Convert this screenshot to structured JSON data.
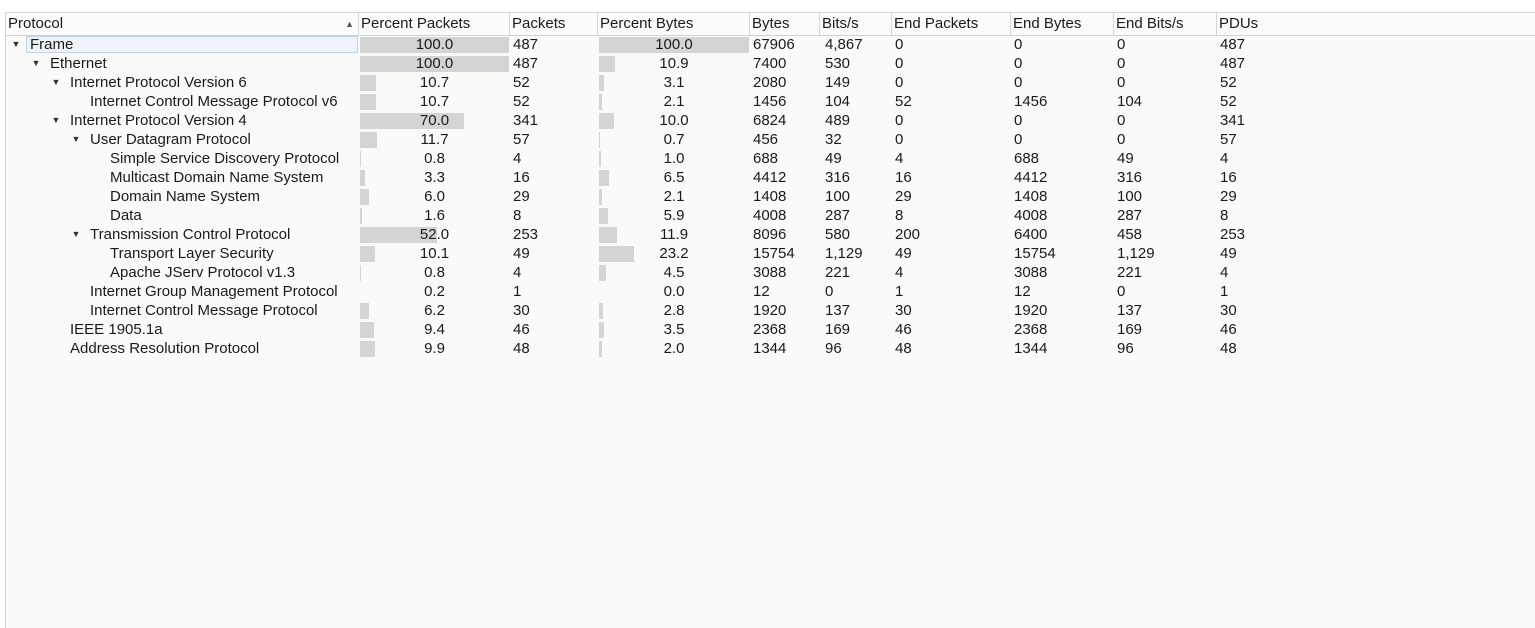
{
  "columns": {
    "protocol": "Protocol",
    "percent_packets": "Percent Packets",
    "packets": "Packets",
    "percent_bytes": "Percent Bytes",
    "bytes": "Bytes",
    "bits_per_s": "Bits/s",
    "end_packets": "End Packets",
    "end_bytes": "End Bytes",
    "end_bits_per_s": "End Bits/s",
    "pdus": "PDUs"
  },
  "sort": {
    "column": "protocol",
    "direction": "ascending",
    "icon": "sort-ascending-icon"
  },
  "rows": [
    {
      "protocol": "Frame",
      "depth": 0,
      "expanded": true,
      "selected": true,
      "percent_packets": "100.0",
      "packets": "487",
      "percent_bytes": "100.0",
      "bytes": "67906",
      "bits_per_s": "4,867",
      "end_packets": "0",
      "end_bytes": "0",
      "end_bits_per_s": "0",
      "pdus": "487"
    },
    {
      "protocol": "Ethernet",
      "depth": 1,
      "expanded": true,
      "percent_packets": "100.0",
      "packets": "487",
      "percent_bytes": "10.9",
      "bytes": "7400",
      "bits_per_s": "530",
      "end_packets": "0",
      "end_bytes": "0",
      "end_bits_per_s": "0",
      "pdus": "487"
    },
    {
      "protocol": "Internet Protocol Version 6",
      "depth": 2,
      "expanded": true,
      "percent_packets": "10.7",
      "packets": "52",
      "percent_bytes": "3.1",
      "bytes": "2080",
      "bits_per_s": "149",
      "end_packets": "0",
      "end_bytes": "0",
      "end_bits_per_s": "0",
      "pdus": "52"
    },
    {
      "protocol": "Internet Control Message Protocol v6",
      "depth": 3,
      "percent_packets": "10.7",
      "packets": "52",
      "percent_bytes": "2.1",
      "bytes": "1456",
      "bits_per_s": "104",
      "end_packets": "52",
      "end_bytes": "1456",
      "end_bits_per_s": "104",
      "pdus": "52"
    },
    {
      "protocol": "Internet Protocol Version 4",
      "depth": 2,
      "expanded": true,
      "percent_packets": "70.0",
      "packets": "341",
      "percent_bytes": "10.0",
      "bytes": "6824",
      "bits_per_s": "489",
      "end_packets": "0",
      "end_bytes": "0",
      "end_bits_per_s": "0",
      "pdus": "341"
    },
    {
      "protocol": "User Datagram Protocol",
      "depth": 3,
      "expanded": true,
      "percent_packets": "11.7",
      "packets": "57",
      "percent_bytes": "0.7",
      "bytes": "456",
      "bits_per_s": "32",
      "end_packets": "0",
      "end_bytes": "0",
      "end_bits_per_s": "0",
      "pdus": "57"
    },
    {
      "protocol": "Simple Service Discovery Protocol",
      "depth": 4,
      "percent_packets": "0.8",
      "packets": "4",
      "percent_bytes": "1.0",
      "bytes": "688",
      "bits_per_s": "49",
      "end_packets": "4",
      "end_bytes": "688",
      "end_bits_per_s": "49",
      "pdus": "4"
    },
    {
      "protocol": "Multicast Domain Name System",
      "depth": 4,
      "percent_packets": "3.3",
      "packets": "16",
      "percent_bytes": "6.5",
      "bytes": "4412",
      "bits_per_s": "316",
      "end_packets": "16",
      "end_bytes": "4412",
      "end_bits_per_s": "316",
      "pdus": "16"
    },
    {
      "protocol": "Domain Name System",
      "depth": 4,
      "percent_packets": "6.0",
      "packets": "29",
      "percent_bytes": "2.1",
      "bytes": "1408",
      "bits_per_s": "100",
      "end_packets": "29",
      "end_bytes": "1408",
      "end_bits_per_s": "100",
      "pdus": "29"
    },
    {
      "protocol": "Data",
      "depth": 4,
      "percent_packets": "1.6",
      "packets": "8",
      "percent_bytes": "5.9",
      "bytes": "4008",
      "bits_per_s": "287",
      "end_packets": "8",
      "end_bytes": "4008",
      "end_bits_per_s": "287",
      "pdus": "8"
    },
    {
      "protocol": "Transmission Control Protocol",
      "depth": 3,
      "expanded": true,
      "percent_packets": "52.0",
      "packets": "253",
      "percent_bytes": "11.9",
      "bytes": "8096",
      "bits_per_s": "580",
      "end_packets": "200",
      "end_bytes": "6400",
      "end_bits_per_s": "458",
      "pdus": "253"
    },
    {
      "protocol": "Transport Layer Security",
      "depth": 4,
      "percent_packets": "10.1",
      "packets": "49",
      "percent_bytes": "23.2",
      "bytes": "15754",
      "bits_per_s": "1,129",
      "end_packets": "49",
      "end_bytes": "15754",
      "end_bits_per_s": "1,129",
      "pdus": "49"
    },
    {
      "protocol": "Apache JServ Protocol v1.3",
      "depth": 4,
      "percent_packets": "0.8",
      "packets": "4",
      "percent_bytes": "4.5",
      "bytes": "3088",
      "bits_per_s": "221",
      "end_packets": "4",
      "end_bytes": "3088",
      "end_bits_per_s": "221",
      "pdus": "4"
    },
    {
      "protocol": "Internet Group Management Protocol",
      "depth": 3,
      "percent_packets": "0.2",
      "packets": "1",
      "percent_bytes": "0.0",
      "bytes": "12",
      "bits_per_s": "0",
      "end_packets": "1",
      "end_bytes": "12",
      "end_bits_per_s": "0",
      "pdus": "1"
    },
    {
      "protocol": "Internet Control Message Protocol",
      "depth": 3,
      "percent_packets": "6.2",
      "packets": "30",
      "percent_bytes": "2.8",
      "bytes": "1920",
      "bits_per_s": "137",
      "end_packets": "30",
      "end_bytes": "1920",
      "end_bits_per_s": "137",
      "pdus": "30"
    },
    {
      "protocol": "IEEE 1905.1a",
      "depth": 2,
      "percent_packets": "9.4",
      "packets": "46",
      "percent_bytes": "3.5",
      "bytes": "2368",
      "bits_per_s": "169",
      "end_packets": "46",
      "end_bytes": "2368",
      "end_bits_per_s": "169",
      "pdus": "46"
    },
    {
      "protocol": "Address Resolution Protocol",
      "depth": 2,
      "percent_packets": "9.9",
      "packets": "48",
      "percent_bytes": "2.0",
      "bytes": "1344",
      "bits_per_s": "96",
      "end_packets": "48",
      "end_bytes": "1344",
      "end_bits_per_s": "96",
      "pdus": "48"
    }
  ],
  "colors": {
    "bar": "#d4d4d4",
    "selection_border": "#c4d3e3",
    "selection_fill": "#eef3f9"
  }
}
